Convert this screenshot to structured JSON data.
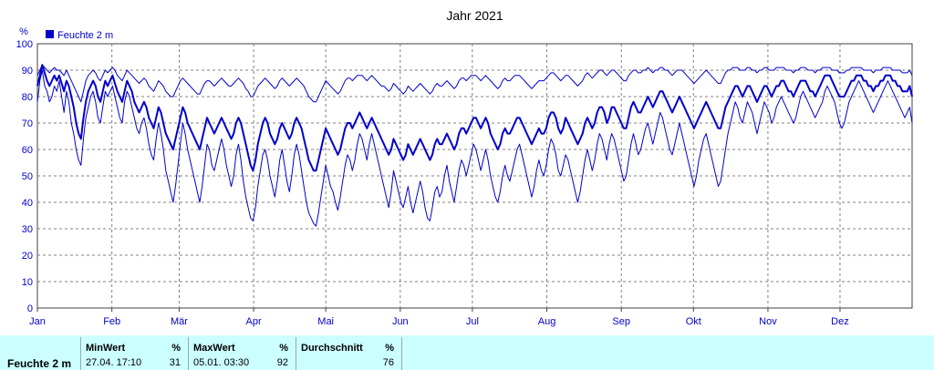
{
  "colors": {
    "series": "#0000cc",
    "grid": "#808080",
    "axis": "#404040",
    "stats_bg": "#ccffff"
  },
  "chart_data": {
    "type": "line",
    "title": "Jahr 2021",
    "ylabel": "%",
    "ylim": [
      0,
      100
    ],
    "yticks": [
      0,
      10,
      20,
      30,
      40,
      50,
      60,
      70,
      80,
      90,
      100
    ],
    "xticks": [
      "Jan",
      "Feb",
      "Mär",
      "Apr",
      "Mai",
      "Jun",
      "Jul",
      "Aug",
      "Sep",
      "Okt",
      "Nov",
      "Dez"
    ],
    "xlim_days": [
      1,
      365
    ],
    "grid": true,
    "legend": {
      "placement": "top-left",
      "entries": [
        "Feuchte  2 m"
      ]
    },
    "series": [
      {
        "name": "Feuchte  2 m",
        "kind": "min",
        "values": [
          78,
          86,
          90,
          84,
          82,
          78,
          80,
          84,
          82,
          86,
          80,
          74,
          82,
          78,
          70,
          66,
          60,
          56,
          54,
          64,
          72,
          76,
          80,
          82,
          78,
          72,
          70,
          76,
          82,
          80,
          82,
          84,
          80,
          76,
          72,
          70,
          78,
          82,
          80,
          76,
          72,
          68,
          66,
          70,
          72,
          68,
          62,
          58,
          56,
          64,
          70,
          66,
          60,
          52,
          48,
          44,
          40,
          46,
          54,
          62,
          70,
          66,
          60,
          56,
          52,
          48,
          44,
          40,
          46,
          54,
          62,
          60,
          54,
          52,
          56,
          60,
          64,
          60,
          54,
          50,
          46,
          50,
          58,
          62,
          56,
          48,
          42,
          38,
          34,
          33,
          38,
          46,
          52,
          58,
          60,
          56,
          50,
          46,
          42,
          48,
          56,
          60,
          54,
          48,
          44,
          50,
          58,
          62,
          58,
          52,
          46,
          40,
          36,
          34,
          32,
          31,
          36,
          42,
          48,
          54,
          50,
          46,
          44,
          40,
          37,
          42,
          48,
          54,
          58,
          56,
          52,
          56,
          62,
          66,
          64,
          60,
          56,
          62,
          66,
          62,
          58,
          54,
          50,
          46,
          42,
          38,
          44,
          52,
          48,
          44,
          40,
          38,
          42,
          46,
          40,
          36,
          40,
          44,
          48,
          44,
          38,
          34,
          33,
          38,
          44,
          46,
          42,
          44,
          50,
          54,
          48,
          44,
          40,
          46,
          52,
          56,
          54,
          50,
          54,
          58,
          62,
          60,
          56,
          52,
          56,
          60,
          56,
          50,
          46,
          42,
          40,
          44,
          50,
          54,
          50,
          48,
          52,
          56,
          60,
          62,
          58,
          54,
          50,
          46,
          42,
          46,
          52,
          56,
          52,
          50,
          54,
          60,
          64,
          62,
          58,
          52,
          50,
          54,
          58,
          56,
          52,
          48,
          44,
          40,
          44,
          50,
          56,
          60,
          56,
          52,
          56,
          62,
          66,
          64,
          60,
          56,
          62,
          66,
          64,
          60,
          56,
          52,
          48,
          50,
          56,
          62,
          66,
          62,
          58,
          60,
          64,
          68,
          70,
          66,
          62,
          66,
          70,
          74,
          72,
          68,
          64,
          60,
          58,
          62,
          66,
          70,
          66,
          62,
          58,
          54,
          50,
          46,
          50,
          56,
          60,
          64,
          66,
          62,
          58,
          54,
          50,
          46,
          48,
          54,
          60,
          66,
          70,
          74,
          78,
          76,
          72,
          70,
          74,
          78,
          76,
          74,
          70,
          66,
          70,
          74,
          78,
          76,
          74,
          70,
          72,
          76,
          78,
          80,
          78,
          76,
          74,
          72,
          70,
          72,
          76,
          80,
          82,
          80,
          78,
          76,
          74,
          72,
          74,
          76,
          78,
          82,
          84,
          82,
          80,
          78,
          74,
          70,
          68,
          70,
          74,
          78,
          80,
          82,
          84,
          86,
          84,
          82,
          80,
          78,
          76,
          74,
          76,
          78,
          80,
          82,
          84,
          86,
          84,
          82,
          80,
          78,
          76,
          74,
          72,
          74,
          76,
          70
        ]
      },
      {
        "name": "Feuchte  2 m",
        "kind": "mean",
        "values": [
          84,
          88,
          92,
          89,
          86,
          84,
          86,
          88,
          86,
          88,
          85,
          82,
          86,
          84,
          80,
          76,
          70,
          66,
          64,
          72,
          78,
          82,
          84,
          86,
          84,
          80,
          78,
          82,
          86,
          84,
          86,
          88,
          85,
          82,
          80,
          78,
          82,
          86,
          84,
          82,
          78,
          76,
          74,
          76,
          78,
          76,
          72,
          70,
          68,
          72,
          76,
          74,
          70,
          66,
          64,
          62,
          60,
          64,
          68,
          72,
          76,
          74,
          70,
          68,
          66,
          64,
          62,
          60,
          64,
          68,
          72,
          70,
          68,
          66,
          68,
          70,
          72,
          70,
          68,
          66,
          64,
          66,
          70,
          72,
          70,
          66,
          62,
          58,
          54,
          52,
          56,
          62,
          66,
          70,
          72,
          70,
          66,
          64,
          62,
          64,
          68,
          70,
          68,
          66,
          64,
          66,
          70,
          72,
          70,
          68,
          64,
          60,
          56,
          54,
          52,
          52,
          56,
          60,
          64,
          68,
          66,
          64,
          62,
          60,
          58,
          60,
          64,
          68,
          70,
          70,
          68,
          70,
          72,
          74,
          72,
          70,
          68,
          70,
          72,
          70,
          68,
          66,
          64,
          62,
          60,
          58,
          60,
          64,
          62,
          60,
          58,
          56,
          58,
          62,
          60,
          58,
          60,
          62,
          64,
          62,
          60,
          58,
          56,
          58,
          62,
          64,
          62,
          62,
          64,
          66,
          64,
          62,
          60,
          62,
          66,
          68,
          68,
          66,
          68,
          70,
          72,
          72,
          70,
          68,
          70,
          72,
          70,
          66,
          64,
          62,
          60,
          62,
          66,
          68,
          66,
          66,
          68,
          70,
          72,
          72,
          70,
          68,
          66,
          64,
          62,
          64,
          66,
          68,
          66,
          66,
          68,
          72,
          74,
          74,
          72,
          68,
          66,
          68,
          72,
          70,
          68,
          66,
          64,
          62,
          64,
          66,
          70,
          72,
          70,
          68,
          70,
          74,
          76,
          76,
          74,
          70,
          72,
          76,
          76,
          74,
          72,
          70,
          68,
          68,
          72,
          76,
          78,
          76,
          74,
          74,
          76,
          78,
          80,
          78,
          76,
          78,
          80,
          82,
          82,
          80,
          78,
          76,
          74,
          76,
          78,
          80,
          78,
          76,
          74,
          72,
          70,
          68,
          70,
          72,
          74,
          76,
          78,
          76,
          74,
          72,
          70,
          68,
          68,
          72,
          76,
          78,
          80,
          82,
          84,
          84,
          82,
          80,
          82,
          84,
          84,
          82,
          80,
          78,
          80,
          82,
          84,
          84,
          82,
          80,
          82,
          84,
          84,
          86,
          86,
          84,
          82,
          82,
          80,
          82,
          84,
          86,
          86,
          86,
          84,
          82,
          82,
          80,
          82,
          84,
          86,
          88,
          88,
          88,
          86,
          84,
          82,
          80,
          80,
          80,
          82,
          84,
          86,
          86,
          88,
          88,
          88,
          86,
          86,
          84,
          84,
          82,
          84,
          84,
          86,
          86,
          88,
          88,
          88,
          86,
          86,
          84,
          84,
          82,
          82,
          82,
          84,
          80
        ]
      },
      {
        "name": "Feuchte  2 m",
        "kind": "max",
        "values": [
          88,
          90,
          92,
          91,
          90,
          89,
          90,
          91,
          90,
          90,
          89,
          88,
          90,
          88,
          86,
          84,
          82,
          80,
          78,
          82,
          86,
          88,
          89,
          90,
          89,
          87,
          86,
          88,
          90,
          89,
          90,
          91,
          90,
          88,
          87,
          86,
          88,
          90,
          89,
          88,
          87,
          86,
          85,
          86,
          87,
          86,
          84,
          83,
          82,
          84,
          86,
          85,
          84,
          82,
          81,
          80,
          80,
          82,
          84,
          86,
          87,
          86,
          85,
          84,
          83,
          82,
          81,
          81,
          83,
          85,
          86,
          86,
          85,
          84,
          85,
          86,
          87,
          86,
          85,
          84,
          84,
          85,
          86,
          87,
          86,
          85,
          83,
          82,
          80,
          80,
          82,
          84,
          85,
          86,
          87,
          86,
          85,
          84,
          83,
          84,
          86,
          87,
          86,
          85,
          84,
          85,
          86,
          87,
          86,
          85,
          84,
          82,
          80,
          79,
          78,
          78,
          80,
          82,
          84,
          86,
          85,
          84,
          83,
          82,
          81,
          82,
          84,
          86,
          87,
          87,
          86,
          87,
          88,
          88,
          88,
          87,
          86,
          87,
          88,
          87,
          86,
          85,
          84,
          84,
          83,
          82,
          83,
          85,
          84,
          83,
          82,
          81,
          82,
          84,
          83,
          82,
          83,
          84,
          85,
          84,
          83,
          82,
          81,
          82,
          84,
          85,
          84,
          84,
          85,
          86,
          85,
          84,
          83,
          84,
          86,
          87,
          87,
          86,
          87,
          88,
          88,
          88,
          87,
          86,
          87,
          88,
          87,
          86,
          85,
          84,
          83,
          84,
          86,
          87,
          86,
          86,
          87,
          88,
          88,
          88,
          87,
          86,
          85,
          84,
          83,
          84,
          85,
          86,
          86,
          86,
          87,
          88,
          89,
          89,
          88,
          87,
          86,
          87,
          88,
          88,
          87,
          86,
          85,
          84,
          85,
          86,
          88,
          89,
          88,
          87,
          88,
          89,
          90,
          90,
          89,
          88,
          89,
          90,
          90,
          89,
          88,
          87,
          86,
          86,
          88,
          89,
          90,
          90,
          89,
          89,
          90,
          90,
          91,
          90,
          89,
          90,
          90,
          91,
          91,
          90,
          90,
          89,
          88,
          89,
          90,
          90,
          90,
          89,
          88,
          87,
          86,
          85,
          86,
          87,
          88,
          89,
          90,
          89,
          88,
          87,
          86,
          85,
          85,
          87,
          89,
          90,
          90,
          91,
          91,
          91,
          90,
          90,
          90,
          91,
          91,
          90,
          90,
          89,
          90,
          90,
          91,
          91,
          90,
          90,
          90,
          91,
          91,
          91,
          91,
          90,
          90,
          90,
          89,
          90,
          90,
          91,
          91,
          91,
          90,
          90,
          90,
          89,
          90,
          90,
          91,
          91,
          91,
          91,
          90,
          90,
          90,
          89,
          89,
          89,
          90,
          90,
          91,
          91,
          91,
          91,
          91,
          90,
          90,
          90,
          90,
          89,
          90,
          90,
          90,
          91,
          91,
          91,
          91,
          90,
          90,
          90,
          90,
          89,
          89,
          89,
          90,
          88
        ]
      }
    ]
  },
  "stats": {
    "series_label": "Feuchte  2 m",
    "min": {
      "label": "MinWert",
      "unit": "%",
      "time": "27.04.  17:10",
      "value": "31"
    },
    "max": {
      "label": "MaxWert",
      "unit": "%",
      "time": "05.01.  03:30",
      "value": "92"
    },
    "avg": {
      "label": "Durchschnitt",
      "unit": "%",
      "value": "76"
    }
  }
}
